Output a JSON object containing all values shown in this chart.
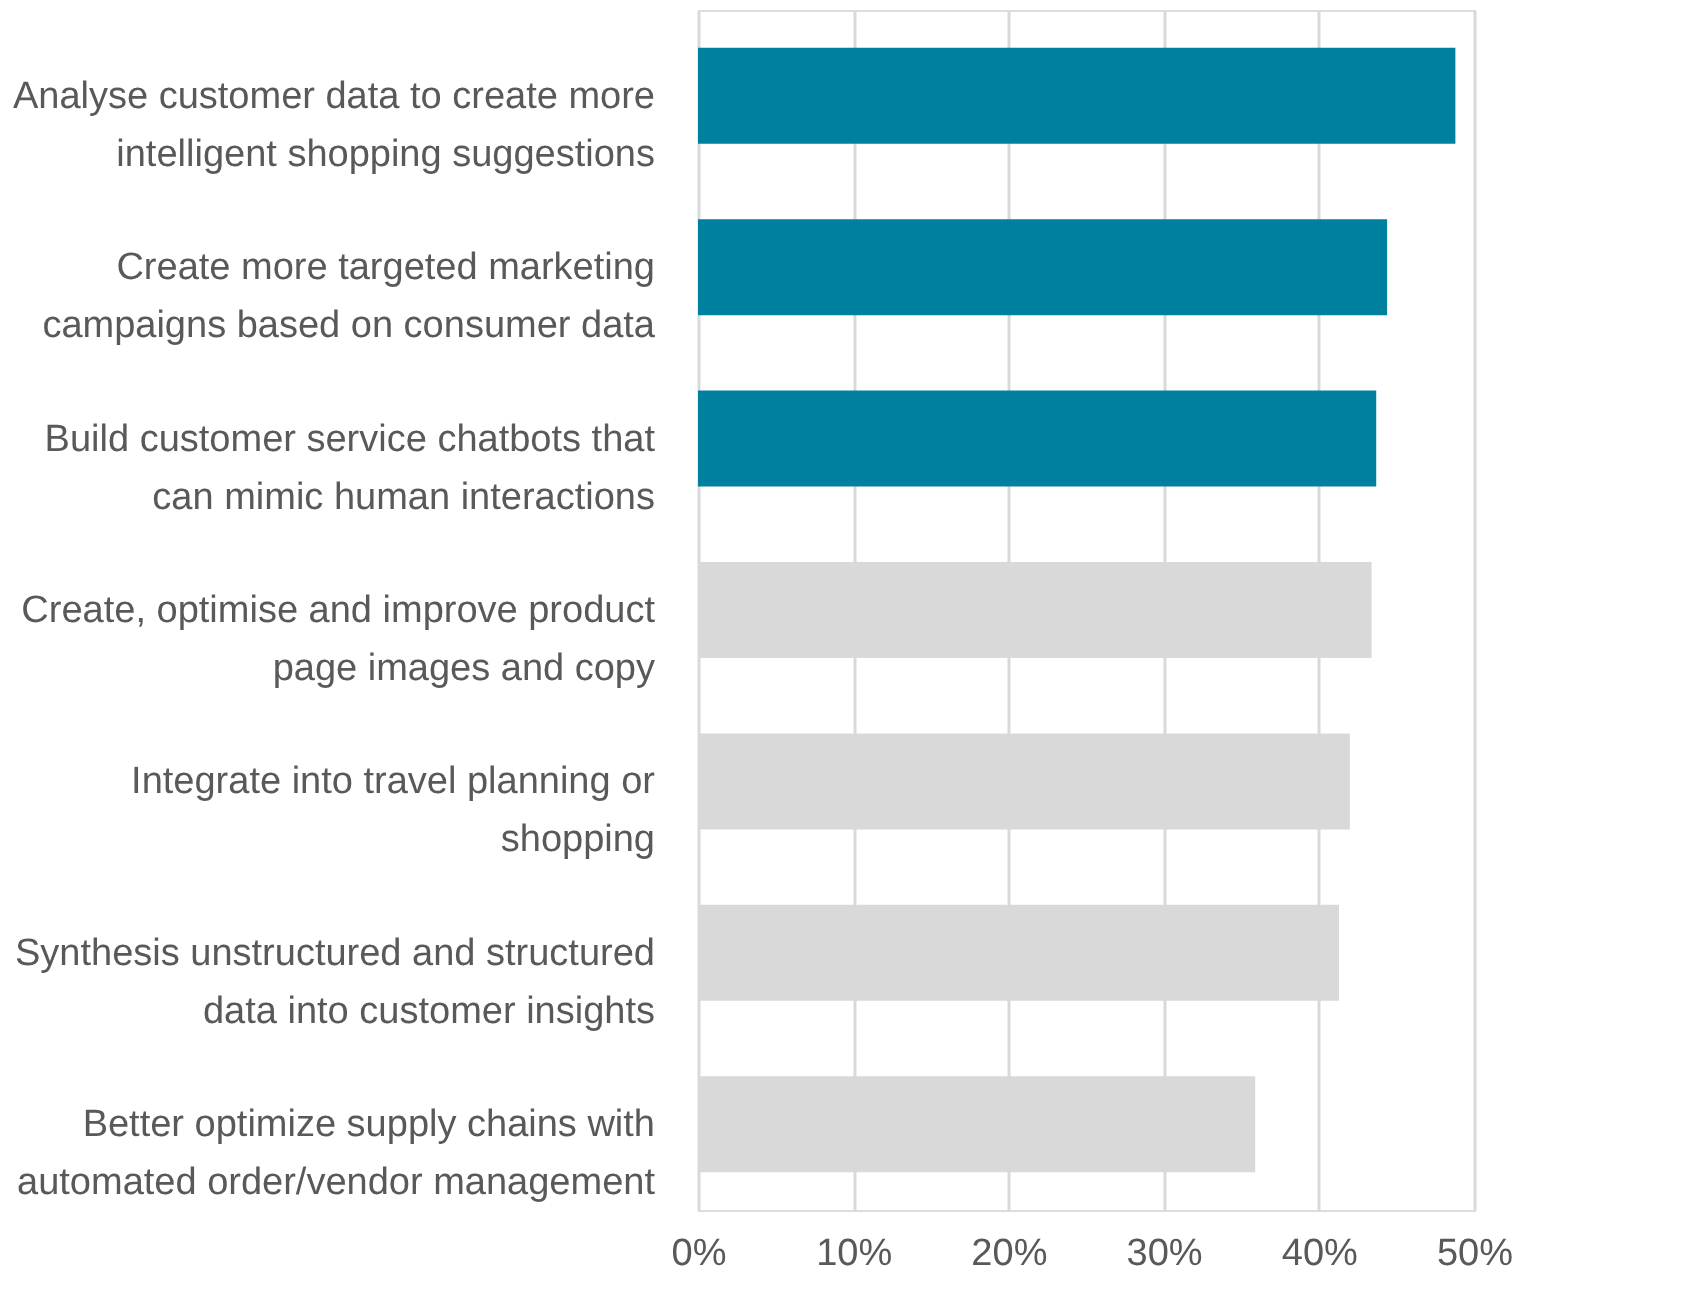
{
  "chart_data": {
    "type": "bar",
    "orientation": "horizontal",
    "categories": [
      "Analyse customer data to create more intelligent shopping suggestions",
      "Create more targeted marketing campaigns based on consumer data",
      "Build customer service chatbots that can mimic human interactions",
      "Create, optimise and improve product page images and copy",
      "Integrate into travel planning or shopping",
      "Synthesis unstructured and structured data into customer insights",
      "Better optimize supply chains with automated order/vendor management"
    ],
    "values": [
      48.8,
      44.4,
      43.7,
      43.4,
      42.0,
      41.3,
      35.9
    ],
    "colors": [
      "#00809f",
      "#00809f",
      "#00809f",
      "#d9d9d9",
      "#d9d9d9",
      "#d9d9d9",
      "#d9d9d9"
    ],
    "xlim": [
      0,
      50
    ],
    "xticks": [
      {
        "value": 0,
        "label": "0%"
      },
      {
        "value": 10,
        "label": "10%"
      },
      {
        "value": 20,
        "label": "20%"
      },
      {
        "value": 30,
        "label": "30%"
      },
      {
        "value": 40,
        "label": "40%"
      },
      {
        "value": 50,
        "label": "50%"
      }
    ],
    "grid": "x"
  }
}
